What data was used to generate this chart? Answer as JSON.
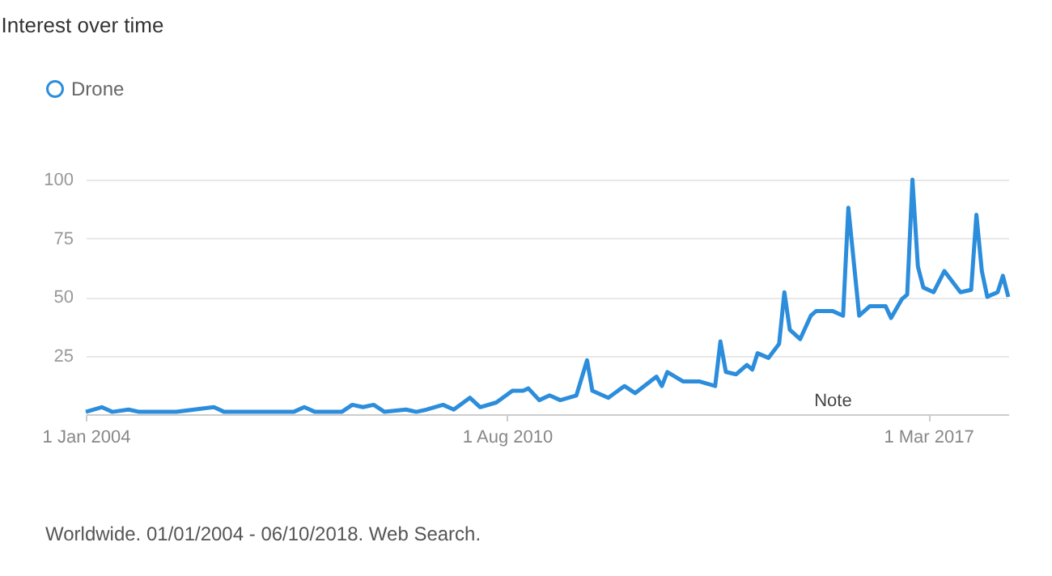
{
  "chart_data": {
    "type": "line",
    "title": "Interest over time",
    "x": [
      "2004-01",
      "2004-04",
      "2004-06",
      "2004-09",
      "2004-11",
      "2005-06",
      "2006-01",
      "2006-03",
      "2007-04",
      "2007-06",
      "2007-08",
      "2008-01",
      "2008-03",
      "2008-05",
      "2008-07",
      "2008-09",
      "2009-01",
      "2009-03",
      "2009-05",
      "2009-08",
      "2009-10",
      "2010-01",
      "2010-03",
      "2010-06",
      "2010-09",
      "2010-11",
      "2010-12",
      "2011-02",
      "2011-04",
      "2011-06",
      "2011-09",
      "2011-11",
      "2011-12",
      "2012-03",
      "2012-06",
      "2012-08",
      "2012-12",
      "2013-01",
      "2013-02",
      "2013-05",
      "2013-08",
      "2013-11",
      "2013-12",
      "2014-01",
      "2014-03",
      "2014-05",
      "2014-06",
      "2014-07",
      "2014-09",
      "2014-11",
      "2014-12",
      "2015-01",
      "2015-03",
      "2015-05",
      "2015-06",
      "2015-09",
      "2015-11",
      "2015-12",
      "2016-02",
      "2016-04",
      "2016-07",
      "2016-08",
      "2016-10",
      "2016-11",
      "2016-12",
      "2017-01",
      "2017-02",
      "2017-04",
      "2017-06",
      "2017-09",
      "2017-11",
      "2017-12",
      "2018-01",
      "2018-02",
      "2018-03",
      "2018-04",
      "2018-05",
      "2018-06"
    ],
    "series": [
      {
        "name": "Drone",
        "color": "#2b8ddb",
        "values": [
          1,
          3,
          1,
          2,
          1,
          1,
          3,
          1,
          1,
          3,
          1,
          1,
          4,
          3,
          4,
          1,
          2,
          1,
          2,
          4,
          2,
          7,
          3,
          5,
          10,
          10,
          11,
          6,
          8,
          6,
          8,
          23,
          10,
          7,
          12,
          9,
          16,
          12,
          18,
          14,
          14,
          12,
          31,
          18,
          17,
          21,
          19,
          26,
          24,
          30,
          52,
          36,
          32,
          42,
          44,
          44,
          42,
          88,
          42,
          46,
          46,
          41,
          49,
          51,
          100,
          63,
          54,
          52,
          61,
          52,
          53,
          85,
          61,
          50,
          51,
          52,
          59,
          50
        ]
      }
    ],
    "xlim": [
      "2004-01",
      "2018-06"
    ],
    "xticks": [
      {
        "value": "2004-01-01",
        "label": "1 Jan 2004"
      },
      {
        "value": "2010-08-01",
        "label": "1 Aug 2010"
      },
      {
        "value": "2017-03-01",
        "label": "1 Mar 2017"
      }
    ],
    "ylim": [
      0,
      100
    ],
    "yticks": [
      25,
      50,
      75,
      100
    ],
    "grid": "y",
    "legend": "top left",
    "marker": "none",
    "line_style": "solid",
    "annotations": [
      "Note",
      "Worldwide. 01/01/2004 - 06/10/2018. Web Search."
    ]
  }
}
